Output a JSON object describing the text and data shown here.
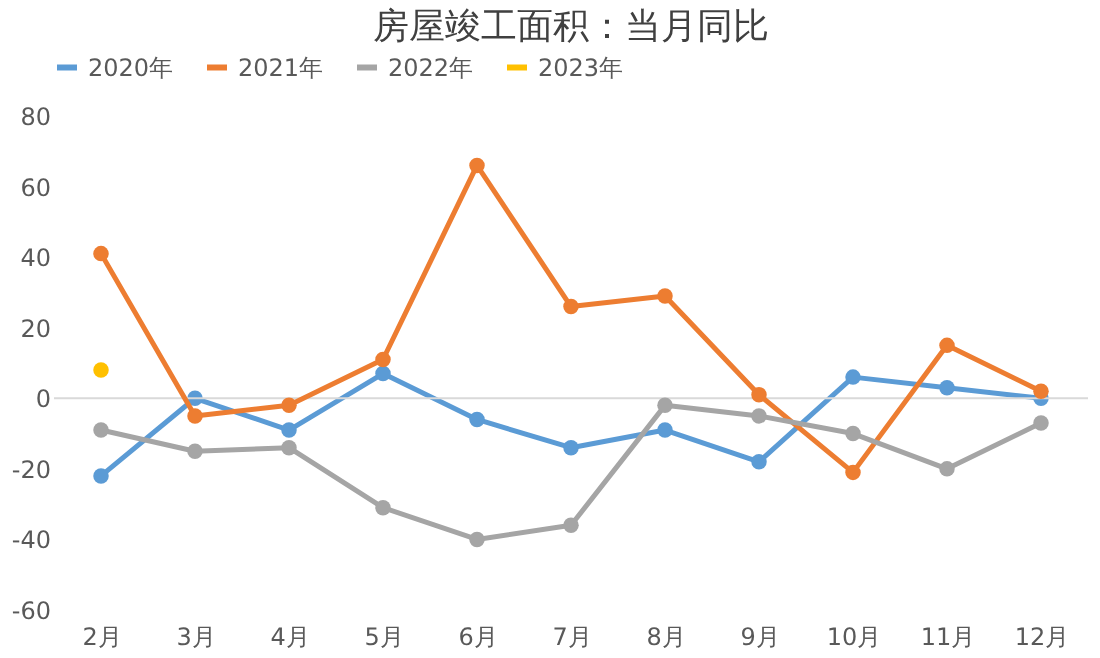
{
  "chart_data": {
    "type": "line",
    "title": "房屋竣工面积：当月同比",
    "categories": [
      "2月",
      "3月",
      "4月",
      "5月",
      "6月",
      "7月",
      "8月",
      "9月",
      "10月",
      "11月",
      "12月"
    ],
    "series": [
      {
        "name": "2020年",
        "color": "#5b9bd5",
        "values": [
          -22,
          0,
          -9,
          7,
          -6,
          -14,
          -9,
          -18,
          6,
          3,
          0
        ]
      },
      {
        "name": "2021年",
        "color": "#ed7d31",
        "values": [
          41,
          -5,
          -2,
          11,
          66,
          26,
          29,
          1,
          -21,
          15,
          2
        ]
      },
      {
        "name": "2022年",
        "color": "#a5a5a5",
        "values": [
          -9,
          -15,
          -14,
          -31,
          -40,
          -36,
          -2,
          -5,
          -10,
          -20,
          -7
        ]
      },
      {
        "name": "2023年",
        "color": "#ffc000",
        "values": [
          8,
          null,
          null,
          null,
          null,
          null,
          null,
          null,
          null,
          null,
          null
        ]
      }
    ],
    "ylim": [
      -60,
      80
    ],
    "yticks": [
      -60,
      -40,
      -20,
      0,
      20,
      40,
      60,
      80
    ],
    "grid": false,
    "legend": "top",
    "marker": "circle",
    "line_style": "solid",
    "ref_lines": [
      {
        "axis": "y",
        "value": 0,
        "color": "#d9d9d9"
      }
    ]
  }
}
